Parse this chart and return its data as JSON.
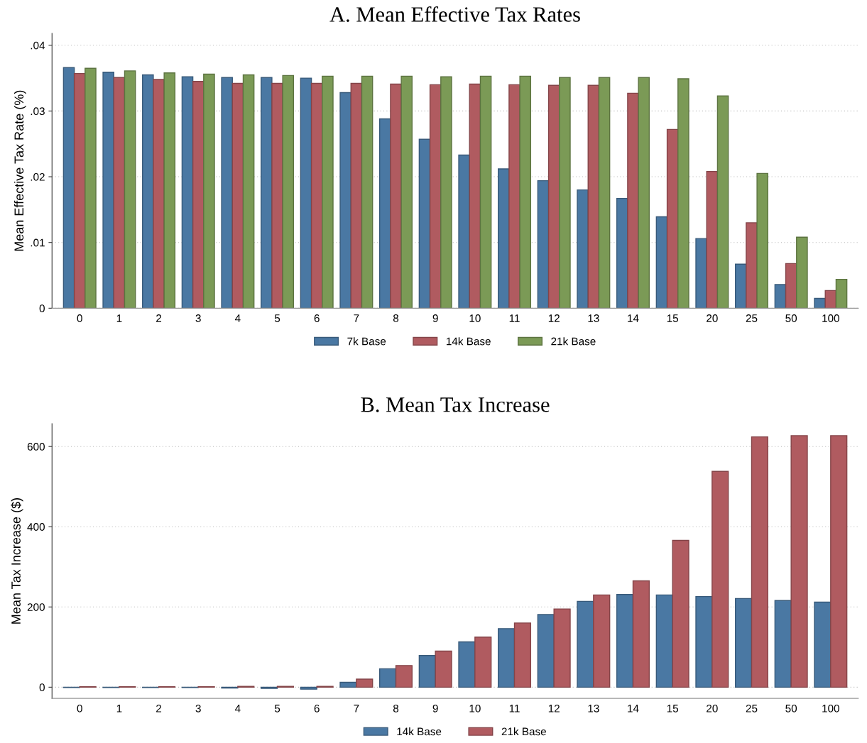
{
  "chart_data": [
    {
      "type": "bar",
      "title": "A. Mean Effective Tax Rates",
      "ylabel": "Mean Effective Tax Rate (%)",
      "categories": [
        "0",
        "1",
        "2",
        "3",
        "4",
        "5",
        "6",
        "7",
        "8",
        "9",
        "10",
        "11",
        "12",
        "13",
        "14",
        "15",
        "20",
        "25",
        "50",
        "100"
      ],
      "series": [
        {
          "name": "7k Base",
          "color": "#4a78a3",
          "values": [
            0.0366,
            0.0359,
            0.0355,
            0.0352,
            0.0351,
            0.0351,
            0.035,
            0.0328,
            0.0288,
            0.0257,
            0.0233,
            0.0212,
            0.0194,
            0.018,
            0.0167,
            0.0139,
            0.0106,
            0.0067,
            0.0036,
            0.0015
          ]
        },
        {
          "name": "14k Base",
          "color": "#b05b60",
          "values": [
            0.0357,
            0.0351,
            0.0348,
            0.0345,
            0.0342,
            0.0342,
            0.0342,
            0.0342,
            0.0341,
            0.034,
            0.0341,
            0.034,
            0.0339,
            0.0339,
            0.0327,
            0.0272,
            0.0208,
            0.013,
            0.0068,
            0.0027
          ]
        },
        {
          "name": "21k Base",
          "color": "#7b9a56",
          "values": [
            0.0365,
            0.0361,
            0.0358,
            0.0356,
            0.0355,
            0.0354,
            0.0353,
            0.0353,
            0.0353,
            0.0352,
            0.0353,
            0.0353,
            0.0351,
            0.0351,
            0.0351,
            0.0349,
            0.0323,
            0.0205,
            0.0108,
            0.0044
          ]
        }
      ],
      "ylim": [
        0,
        0.0418
      ],
      "yticks": [
        0,
        {
          "value": 0.01,
          "label": ".01"
        },
        {
          "value": 0.02,
          "label": ".02"
        },
        {
          "value": 0.03,
          "label": ".03"
        },
        {
          "value": 0.04,
          "label": ".04"
        }
      ],
      "grid": "y",
      "legend": "bottom"
    },
    {
      "type": "bar",
      "title": "B. Mean Tax Increase",
      "ylabel": "Mean Tax Increase ($)",
      "categories": [
        "0",
        "1",
        "2",
        "3",
        "4",
        "5",
        "6",
        "7",
        "8",
        "9",
        "10",
        "11",
        "12",
        "13",
        "14",
        "15",
        "20",
        "25",
        "50",
        "100"
      ],
      "series": [
        {
          "name": "14k Base",
          "color": "#4a78a3",
          "values": [
            -1,
            -1,
            -1,
            -1,
            -2,
            -3,
            -5,
            12,
            46,
            79,
            113,
            146,
            181,
            214,
            231,
            230,
            226,
            221,
            216,
            212
          ]
        },
        {
          "name": "21k Base",
          "color": "#b05b60",
          "values": [
            1,
            1,
            1,
            1,
            2,
            2,
            2,
            20,
            54,
            90,
            125,
            160,
            195,
            230,
            265,
            366,
            538,
            624,
            627,
            627
          ]
        }
      ],
      "ylim": [
        -28,
        657
      ],
      "yticks": [
        0,
        200,
        400,
        600
      ],
      "grid": "y",
      "legend": "bottom"
    }
  ]
}
